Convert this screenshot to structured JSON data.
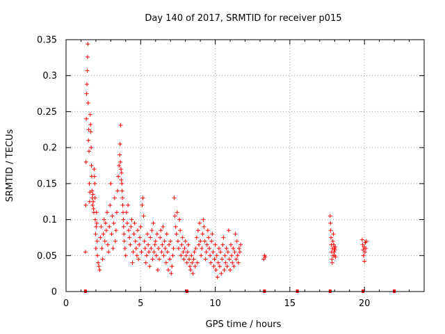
{
  "chart_data": {
    "type": "scatter",
    "title": "Day 140 of 2017, SRMTID for receiver p015",
    "xlabel": "GPS time / hours",
    "ylabel": "SRMTID / TECUs",
    "xlim": [
      0,
      24
    ],
    "ylim": [
      0,
      0.35
    ],
    "grid": true,
    "marker": "plus",
    "color": "#ff0000",
    "x_ticks": [
      0,
      5,
      10,
      15,
      20
    ],
    "x_tick_labels": [
      "0",
      "5",
      "10",
      "15",
      "20"
    ],
    "y_ticks": [
      0,
      0.05,
      0.1,
      0.15,
      0.2,
      0.25,
      0.3,
      0.35
    ],
    "y_tick_labels": [
      "0",
      "0.05",
      "0.1",
      "0.15",
      "0.2",
      "0.25",
      "0.3",
      "0.35"
    ],
    "series": [
      {
        "name": "SRMTID",
        "x": [
          1.3,
          1.32,
          1.34,
          1.36,
          1.38,
          1.4,
          1.42,
          1.44,
          1.46,
          1.48,
          1.5,
          1.52,
          1.54,
          1.56,
          1.58,
          1.6,
          1.62,
          1.64,
          1.66,
          1.68,
          1.7,
          1.72,
          1.74,
          1.76,
          1.78,
          1.8,
          1.82,
          1.84,
          1.86,
          1.88,
          1.9,
          1.92,
          1.94,
          1.96,
          1.98,
          2.0,
          2.02,
          2.04,
          2.06,
          2.08,
          2.1,
          2.15,
          2.2,
          2.25,
          2.3,
          2.35,
          2.4,
          2.45,
          2.5,
          2.55,
          2.6,
          2.65,
          2.7,
          2.75,
          2.8,
          2.85,
          2.9,
          2.95,
          3.0,
          3.05,
          3.1,
          3.15,
          3.2,
          3.25,
          3.3,
          3.35,
          3.4,
          3.45,
          3.5,
          3.55,
          3.6,
          3.62,
          3.64,
          3.66,
          3.68,
          3.7,
          3.72,
          3.74,
          3.76,
          3.78,
          3.8,
          3.82,
          3.84,
          3.86,
          3.88,
          3.9,
          3.95,
          4.0,
          4.05,
          4.1,
          4.15,
          4.2,
          4.25,
          4.3,
          4.35,
          4.4,
          4.45,
          4.5,
          4.55,
          4.6,
          4.65,
          4.7,
          4.75,
          4.8,
          4.85,
          4.9,
          4.95,
          5.0,
          5.05,
          5.1,
          5.15,
          5.2,
          5.25,
          5.3,
          5.35,
          5.4,
          5.45,
          5.5,
          5.55,
          5.6,
          5.65,
          5.7,
          5.75,
          5.8,
          5.85,
          5.9,
          5.95,
          6.0,
          6.05,
          6.1,
          6.15,
          6.2,
          6.25,
          6.3,
          6.35,
          6.4,
          6.45,
          6.5,
          6.55,
          6.6,
          6.65,
          6.7,
          6.75,
          6.8,
          6.85,
          6.9,
          6.95,
          7.0,
          7.05,
          7.1,
          7.15,
          7.2,
          7.25,
          7.3,
          7.35,
          7.4,
          7.45,
          7.5,
          7.55,
          7.6,
          7.65,
          7.7,
          7.75,
          7.8,
          7.85,
          7.9,
          7.95,
          8.0,
          8.05,
          8.1,
          8.15,
          8.2,
          8.25,
          8.3,
          8.35,
          8.4,
          8.45,
          8.5,
          8.55,
          8.6,
          8.65,
          8.7,
          8.75,
          8.8,
          8.85,
          8.9,
          8.95,
          9.0,
          9.05,
          9.1,
          9.15,
          9.2,
          9.25,
          9.3,
          9.35,
          9.4,
          9.45,
          9.5,
          9.55,
          9.6,
          9.65,
          9.7,
          9.75,
          9.8,
          9.85,
          9.9,
          9.95,
          10.0,
          10.05,
          10.1,
          10.15,
          10.2,
          10.25,
          10.3,
          10.35,
          10.4,
          10.45,
          10.5,
          10.55,
          10.6,
          10.65,
          10.7,
          10.75,
          10.8,
          10.85,
          10.9,
          10.95,
          11.0,
          11.05,
          11.1,
          11.15,
          11.2,
          11.25,
          11.3,
          11.35,
          11.4,
          11.45,
          11.5,
          11.55,
          11.6,
          11.65,
          11.7,
          13.25,
          13.3,
          13.35,
          17.7,
          17.72,
          17.74,
          17.76,
          17.78,
          17.8,
          17.82,
          17.84,
          17.86,
          17.88,
          17.9,
          17.92,
          17.94,
          17.96,
          17.98,
          18.0,
          18.02,
          18.04,
          18.06,
          19.85,
          19.88,
          19.91,
          19.94,
          19.97,
          20.0,
          20.03,
          20.06,
          20.09,
          20.12
        ],
        "y": [
          0.055,
          0.12,
          0.18,
          0.24,
          0.275,
          0.288,
          0.307,
          0.326,
          0.344,
          0.262,
          0.21,
          0.225,
          0.195,
          0.15,
          0.125,
          0.138,
          0.246,
          0.232,
          0.222,
          0.2,
          0.175,
          0.16,
          0.14,
          0.13,
          0.12,
          0.135,
          0.125,
          0.115,
          0.11,
          0.17,
          0.16,
          0.15,
          0.13,
          0.1,
          0.08,
          0.06,
          0.09,
          0.11,
          0.095,
          0.07,
          0.05,
          0.04,
          0.035,
          0.03,
          0.075,
          0.09,
          0.06,
          0.045,
          0.08,
          0.1,
          0.07,
          0.095,
          0.085,
          0.11,
          0.065,
          0.055,
          0.09,
          0.12,
          0.15,
          0.08,
          0.105,
          0.06,
          0.095,
          0.13,
          0.07,
          0.085,
          0.11,
          0.14,
          0.16,
          0.175,
          0.19,
          0.205,
          0.18,
          0.231,
          0.17,
          0.155,
          0.165,
          0.15,
          0.14,
          0.13,
          0.12,
          0.11,
          0.1,
          0.09,
          0.08,
          0.07,
          0.06,
          0.05,
          0.11,
          0.095,
          0.12,
          0.085,
          0.075,
          0.065,
          0.09,
          0.1,
          0.04,
          0.055,
          0.08,
          0.095,
          0.07,
          0.06,
          0.05,
          0.085,
          0.045,
          0.065,
          0.075,
          0.09,
          0.055,
          0.12,
          0.13,
          0.105,
          0.07,
          0.06,
          0.04,
          0.05,
          0.08,
          0.065,
          0.055,
          0.035,
          0.075,
          0.06,
          0.085,
          0.045,
          0.095,
          0.055,
          0.065,
          0.07,
          0.05,
          0.08,
          0.03,
          0.06,
          0.045,
          0.075,
          0.085,
          0.055,
          0.065,
          0.09,
          0.05,
          0.07,
          0.06,
          0.04,
          0.08,
          0.055,
          0.03,
          0.065,
          0.045,
          0.07,
          0.025,
          0.035,
          0.05,
          0.06,
          0.13,
          0.105,
          0.09,
          0.08,
          0.11,
          0.07,
          0.06,
          0.1,
          0.085,
          0.05,
          0.065,
          0.075,
          0.055,
          0.045,
          0.06,
          0.07,
          0.05,
          0.04,
          0.055,
          0.065,
          0.045,
          0.035,
          0.03,
          0.05,
          0.04,
          0.025,
          0.045,
          0.055,
          0.035,
          0.06,
          0.075,
          0.04,
          0.085,
          0.065,
          0.095,
          0.07,
          0.05,
          0.06,
          0.08,
          0.1,
          0.09,
          0.07,
          0.045,
          0.055,
          0.065,
          0.085,
          0.075,
          0.06,
          0.05,
          0.04,
          0.07,
          0.08,
          0.055,
          0.035,
          0.045,
          0.065,
          0.03,
          0.05,
          0.02,
          0.04,
          0.06,
          0.035,
          0.055,
          0.025,
          0.045,
          0.065,
          0.075,
          0.03,
          0.05,
          0.04,
          0.06,
          0.035,
          0.055,
          0.085,
          0.045,
          0.03,
          0.065,
          0.05,
          0.04,
          0.06,
          0.035,
          0.055,
          0.08,
          0.045,
          0.07,
          0.05,
          0.04,
          0.06,
          0.055,
          0.065,
          0.045,
          0.05,
          0.048,
          0.105,
          0.095,
          0.085,
          0.075,
          0.065,
          0.055,
          0.045,
          0.04,
          0.06,
          0.07,
          0.05,
          0.08,
          0.065,
          0.055,
          0.06,
          0.05,
          0.058,
          0.062,
          0.048,
          0.072,
          0.065,
          0.058,
          0.05,
          0.062,
          0.042,
          0.055,
          0.068,
          0.06,
          0.07
        ]
      }
    ],
    "baseline_markers_x": [
      1.3,
      8.1,
      13.3,
      15.5,
      17.7,
      19.9,
      22.0
    ]
  }
}
